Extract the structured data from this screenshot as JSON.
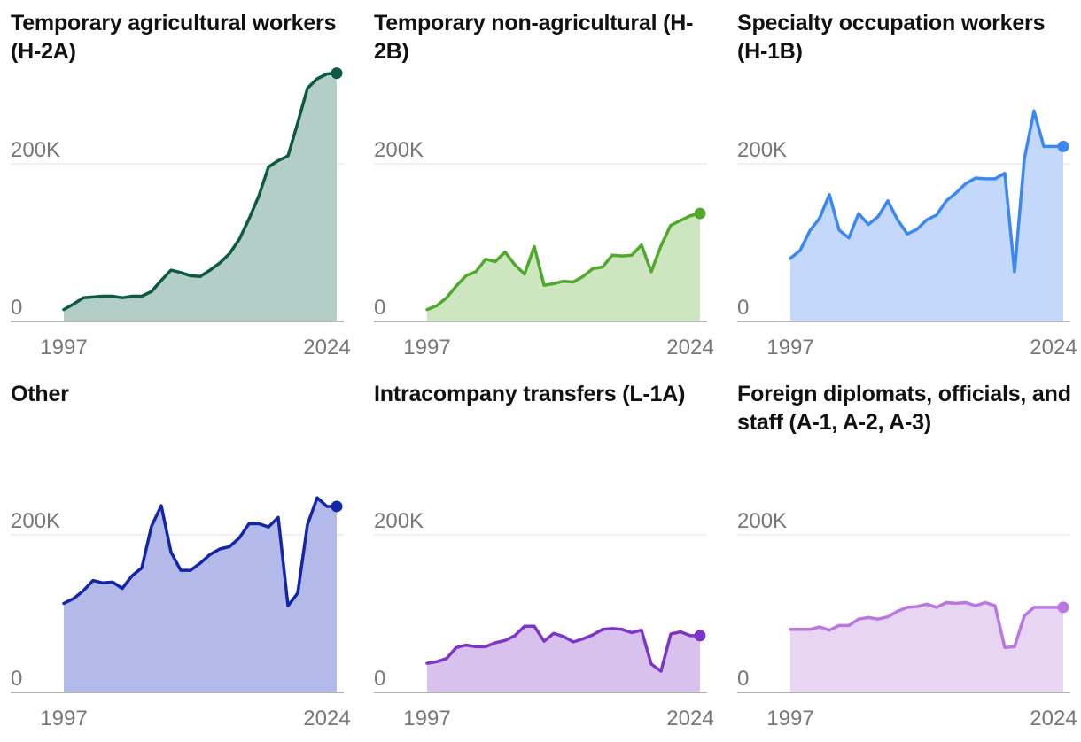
{
  "chart_data": [
    {
      "type": "area",
      "title": "Temporary agricultural workers (H-2A)",
      "color": "#0b5a41",
      "fill": "#b3cec6",
      "x_ticks": [
        "1997",
        "2024"
      ],
      "y_ticks": [
        "0",
        "200K"
      ],
      "ylim": [
        0,
        300000
      ],
      "x": [
        1997,
        1998,
        1999,
        2000,
        2001,
        2002,
        2003,
        2004,
        2005,
        2006,
        2007,
        2008,
        2009,
        2010,
        2011,
        2012,
        2013,
        2014,
        2015,
        2016,
        2017,
        2018,
        2019,
        2020,
        2021,
        2022,
        2023,
        2024,
        2025
      ],
      "values": [
        15000,
        22000,
        30000,
        31000,
        32000,
        32000,
        30000,
        32000,
        32000,
        38000,
        52000,
        65000,
        62000,
        58000,
        57000,
        65000,
        74000,
        86000,
        104000,
        130000,
        159000,
        196000,
        204000,
        210000,
        252000,
        296000,
        308000,
        314000,
        315000
      ]
    },
    {
      "type": "area",
      "title": "Temporary non-agricultural (H-2B)",
      "color": "#4fa92a",
      "fill": "#cde6bf",
      "x_ticks": [
        "1997",
        "2024"
      ],
      "y_ticks": [
        "0",
        "200K"
      ],
      "ylim": [
        0,
        300000
      ],
      "x": [
        1997,
        1998,
        1999,
        2000,
        2001,
        2002,
        2003,
        2004,
        2005,
        2006,
        2007,
        2008,
        2009,
        2010,
        2011,
        2012,
        2013,
        2014,
        2015,
        2016,
        2017,
        2018,
        2019,
        2020,
        2021,
        2022,
        2023,
        2024,
        2025
      ],
      "values": [
        15000,
        20000,
        30000,
        45000,
        58000,
        63000,
        79000,
        76000,
        88000,
        72000,
        60000,
        95000,
        46000,
        48000,
        51000,
        50000,
        57000,
        67000,
        69000,
        84000,
        83000,
        84000,
        97000,
        63000,
        96000,
        122000,
        128000,
        134000,
        137000
      ]
    },
    {
      "type": "area",
      "title": "Specialty occupation workers (H-1B)",
      "color": "#3d87f0",
      "fill": "#c3d8fb",
      "x_ticks": [
        "1997",
        "2024"
      ],
      "y_ticks": [
        "0",
        "200K"
      ],
      "ylim": [
        0,
        300000
      ],
      "x": [
        1997,
        1998,
        1999,
        2000,
        2001,
        2002,
        2003,
        2004,
        2005,
        2006,
        2007,
        2008,
        2009,
        2010,
        2011,
        2012,
        2013,
        2014,
        2015,
        2016,
        2017,
        2018,
        2019,
        2020,
        2021,
        2022,
        2023,
        2024,
        2025
      ],
      "values": [
        80000,
        90000,
        115000,
        131000,
        161000,
        116000,
        106000,
        137000,
        123000,
        133000,
        153000,
        129000,
        111000,
        117000,
        129000,
        135000,
        153000,
        163000,
        175000,
        182000,
        181000,
        181000,
        188000,
        63000,
        206000,
        267000,
        222000,
        222000,
        222000
      ]
    },
    {
      "type": "area",
      "title": "Other",
      "color": "#1426a8",
      "fill": "#b3b9e8",
      "x_ticks": [
        "1997",
        "2024"
      ],
      "y_ticks": [
        "0",
        "200K"
      ],
      "ylim": [
        0,
        300000
      ],
      "x": [
        1997,
        1998,
        1999,
        2000,
        2001,
        2002,
        2003,
        2004,
        2005,
        2006,
        2007,
        2008,
        2009,
        2010,
        2011,
        2012,
        2013,
        2014,
        2015,
        2016,
        2017,
        2018,
        2019,
        2020,
        2021,
        2022,
        2023,
        2024,
        2025
      ],
      "values": [
        113000,
        119000,
        129000,
        142000,
        139000,
        140000,
        132000,
        148000,
        158000,
        211000,
        237000,
        178000,
        155000,
        155000,
        164000,
        175000,
        182000,
        185000,
        196000,
        214000,
        214000,
        210000,
        222000,
        110000,
        126000,
        213000,
        247000,
        236000,
        236000
      ]
    },
    {
      "type": "area",
      "title": "Intracompany transfers (L-1A)",
      "color": "#7d35c7",
      "fill": "#d9c1ee",
      "x_ticks": [
        "1997",
        "2024"
      ],
      "y_ticks": [
        "0",
        "200K"
      ],
      "ylim": [
        0,
        300000
      ],
      "x": [
        1997,
        1998,
        1999,
        2000,
        2001,
        2002,
        2003,
        2004,
        2005,
        2006,
        2007,
        2008,
        2009,
        2010,
        2011,
        2012,
        2013,
        2014,
        2015,
        2016,
        2017,
        2018,
        2019,
        2020,
        2021,
        2022,
        2023,
        2024,
        2025
      ],
      "values": [
        37000,
        39000,
        43000,
        57000,
        60000,
        58000,
        58000,
        63000,
        66000,
        72000,
        84000,
        84000,
        65000,
        75000,
        71000,
        64000,
        68000,
        73000,
        80000,
        81000,
        80000,
        76000,
        79000,
        36000,
        27000,
        74000,
        77000,
        72000,
        72000
      ]
    },
    {
      "type": "area",
      "title": "Foreign diplomats, officials, and staff (A-1, A-2, A-3)",
      "color": "#b977e0",
      "fill": "#e8d4f3",
      "x_ticks": [
        "1997",
        "2024"
      ],
      "y_ticks": [
        "0",
        "200K"
      ],
      "ylim": [
        0,
        300000
      ],
      "x": [
        1997,
        1998,
        1999,
        2000,
        2001,
        2002,
        2003,
        2004,
        2005,
        2006,
        2007,
        2008,
        2009,
        2010,
        2011,
        2012,
        2013,
        2014,
        2015,
        2016,
        2017,
        2018,
        2019,
        2020,
        2021,
        2022,
        2023,
        2024,
        2025
      ],
      "values": [
        80000,
        80000,
        80000,
        83000,
        79000,
        85000,
        85000,
        93000,
        95000,
        93000,
        96000,
        103000,
        108000,
        109000,
        112000,
        108000,
        114000,
        113000,
        114000,
        110000,
        114000,
        110000,
        57000,
        58000,
        97000,
        108000,
        108000,
        108000,
        108000
      ]
    }
  ]
}
